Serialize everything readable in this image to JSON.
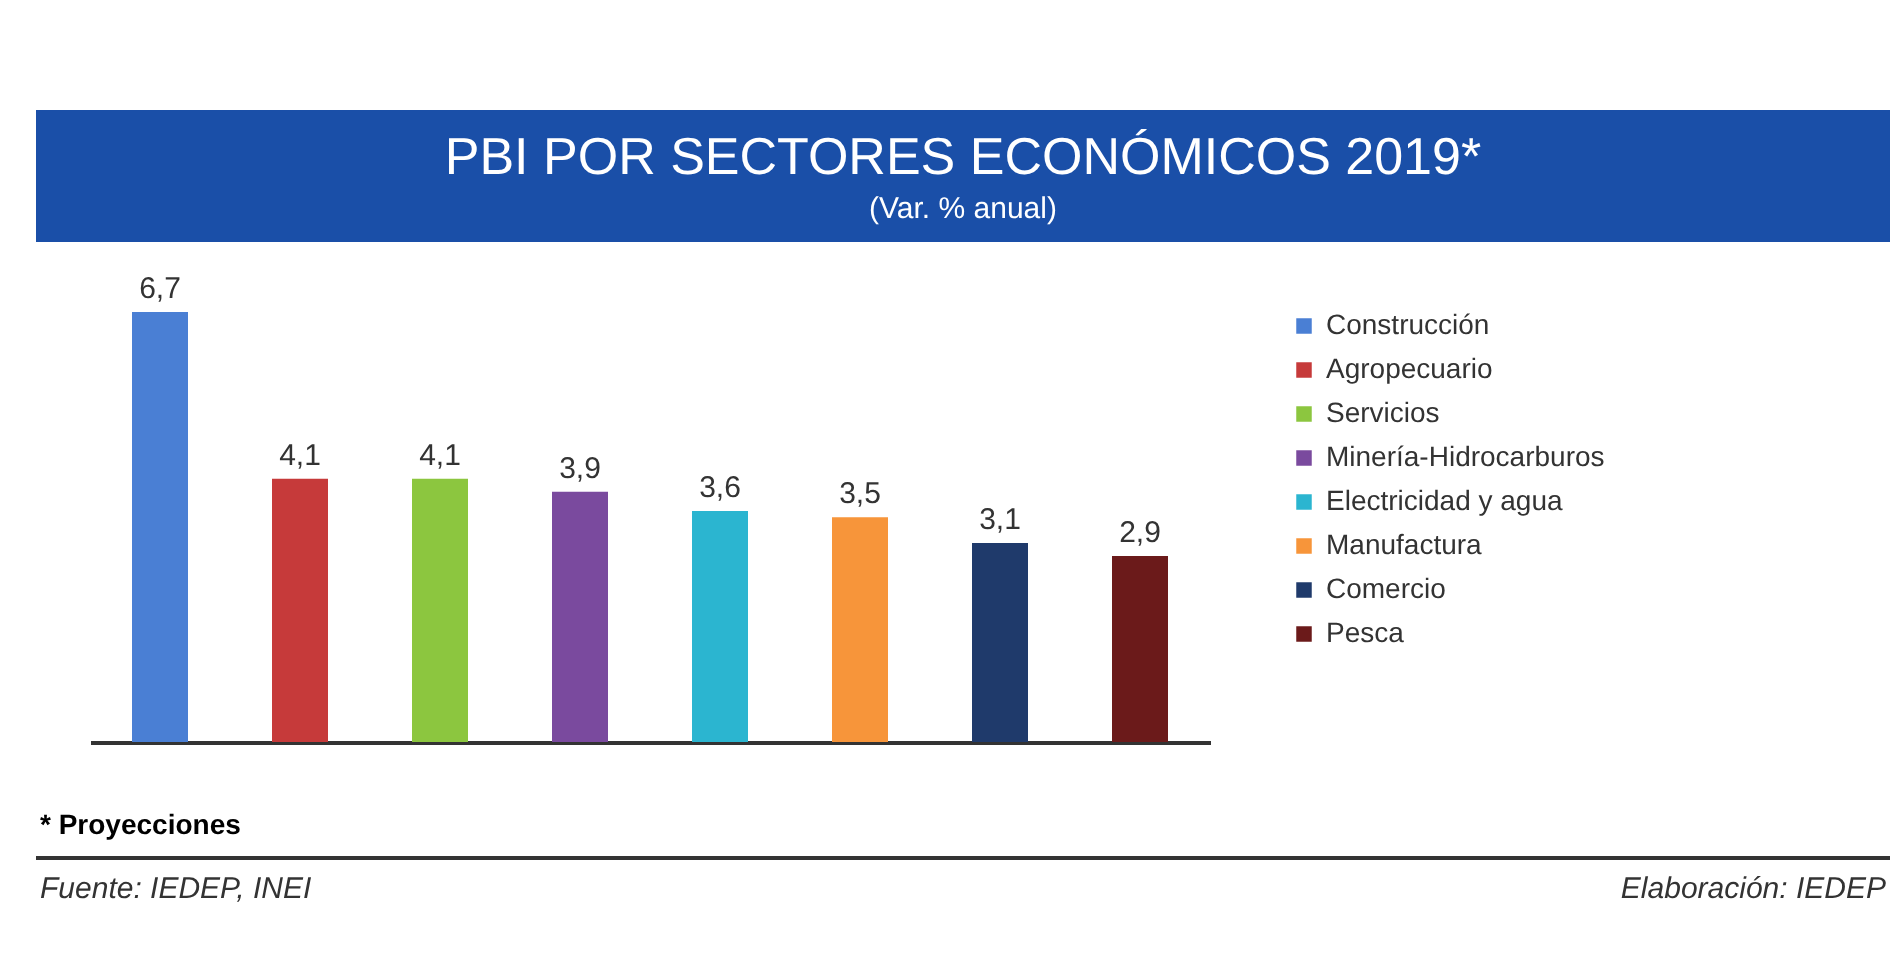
{
  "chart_data": {
    "type": "bar",
    "title": "PBI POR SECTORES ECONÓMICOS 2019*",
    "subtitle": "(Var. % anual)",
    "categories": [
      null,
      null,
      null,
      null,
      null,
      null,
      null,
      null
    ],
    "series": [
      {
        "name": "Construcción",
        "color": "#4a7fd4",
        "values": [
          6.7,
          null,
          null,
          null,
          null,
          null,
          null,
          null
        ],
        "value_labels": [
          "6,7",
          null,
          null,
          null,
          null,
          null,
          null,
          null
        ]
      },
      {
        "name": "Agropecuario",
        "color": "#c63a3a",
        "values": [
          null,
          4.1,
          null,
          null,
          null,
          null,
          null,
          null
        ],
        "value_labels": [
          null,
          "4,1",
          null,
          null,
          null,
          null,
          null,
          null
        ]
      },
      {
        "name": "Servicios",
        "color": "#8cc63f",
        "values": [
          null,
          null,
          4.1,
          null,
          null,
          null,
          null,
          null
        ],
        "value_labels": [
          null,
          null,
          "4,1",
          null,
          null,
          null,
          null,
          null
        ]
      },
      {
        "name": "Minería-Hidrocarburos",
        "color": "#7a4a9e",
        "values": [
          null,
          null,
          null,
          3.9,
          null,
          null,
          null,
          null
        ],
        "value_labels": [
          null,
          null,
          null,
          "3,9",
          null,
          null,
          null,
          null
        ]
      },
      {
        "name": "Electricidad y agua",
        "color": "#2bb5d0",
        "values": [
          null,
          null,
          null,
          null,
          3.6,
          null,
          null,
          null
        ],
        "value_labels": [
          null,
          null,
          null,
          null,
          "3,6",
          null,
          null,
          null
        ]
      },
      {
        "name": "Manufactura",
        "color": "#f7953a",
        "values": [
          null,
          null,
          null,
          null,
          null,
          3.5,
          null,
          null
        ],
        "value_labels": [
          null,
          null,
          null,
          null,
          null,
          "3,5",
          null,
          null
        ]
      },
      {
        "name": "Comercio",
        "color": "#1f3a6b",
        "values": [
          null,
          null,
          null,
          null,
          null,
          null,
          3.1,
          null
        ],
        "value_labels": [
          null,
          null,
          null,
          null,
          null,
          null,
          "3,1",
          null
        ]
      },
      {
        "name": "Pesca",
        "color": "#6b1a1a",
        "values": [
          null,
          null,
          null,
          null,
          null,
          null,
          null,
          2.9
        ],
        "value_labels": [
          null,
          null,
          null,
          null,
          null,
          null,
          null,
          "2,9"
        ]
      }
    ],
    "legend": "right",
    "tick_labels": false,
    "stacked": true,
    "annotations": [
      "* Proyecciones",
      "Fuente: IEDEP, INEI",
      "Elaboración: IEDEP"
    ]
  }
}
